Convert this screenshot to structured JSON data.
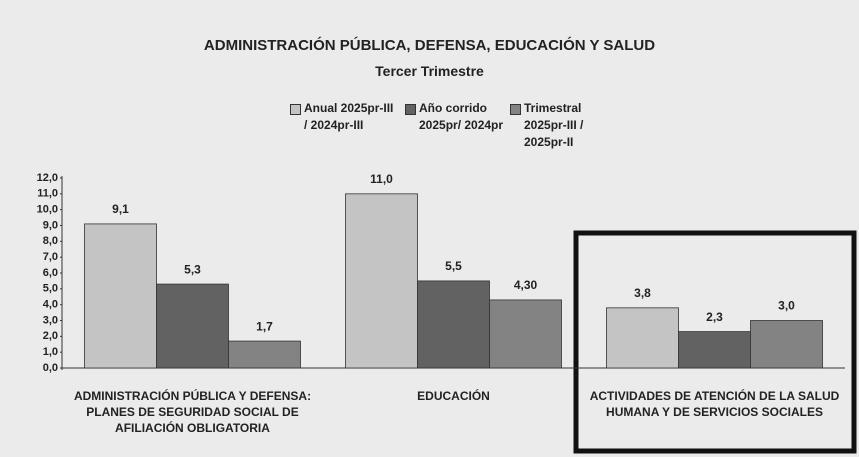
{
  "chart_data": {
    "type": "bar",
    "title": "ADMINISTRACIÓN PÚBLICA, DEFENSA, EDUCACIÓN Y SALUD",
    "subtitle": "Tercer Trimestre",
    "categories": [
      "ADMINISTRACIÓN PÚBLICA Y DEFENSA: PLANES DE SEGURIDAD SOCIAL DE AFILIACIÓN OBLIGATORIA",
      "EDUCACIÓN",
      "ACTIVIDADES DE ATENCIÓN DE LA SALUD HUMANA Y DE SERVICIOS SOCIALES"
    ],
    "series": [
      {
        "name": "Anual 2025pr-III / 2024pr-III",
        "color": "#c4c4c4",
        "values": [
          9.1,
          11.0,
          3.8
        ],
        "value_labels": [
          "9,1",
          "11,0",
          "3,8"
        ]
      },
      {
        "name": "Año corrido 2025pr/ 2024pr",
        "color": "#626262",
        "values": [
          5.3,
          5.5,
          2.3
        ],
        "value_labels": [
          "5,3",
          "5,5",
          "2,3"
        ]
      },
      {
        "name": "Trimestral 2025pr-III / 2025pr-II",
        "color": "#838383",
        "values": [
          1.7,
          4.3,
          3.0
        ],
        "value_labels": [
          "1,7",
          "4,30",
          "3,0"
        ]
      }
    ],
    "ylim": [
      0,
      12
    ],
    "yticks": [
      {
        "value": 0,
        "label": "0,0"
      },
      {
        "value": 1,
        "label": "1,0"
      },
      {
        "value": 2,
        "label": "2,0"
      },
      {
        "value": 3,
        "label": "3,0"
      },
      {
        "value": 4,
        "label": "4,0"
      },
      {
        "value": 5,
        "label": "5,0"
      },
      {
        "value": 6,
        "label": "6,0"
      },
      {
        "value": 7,
        "label": "7,0"
      },
      {
        "value": 8,
        "label": "8,0"
      },
      {
        "value": 9,
        "label": "9,0"
      },
      {
        "value": 10,
        "label": "10,0"
      },
      {
        "value": 11,
        "label": "11,0"
      },
      {
        "value": 12,
        "label": "12,0"
      }
    ],
    "grid": false
  }
}
